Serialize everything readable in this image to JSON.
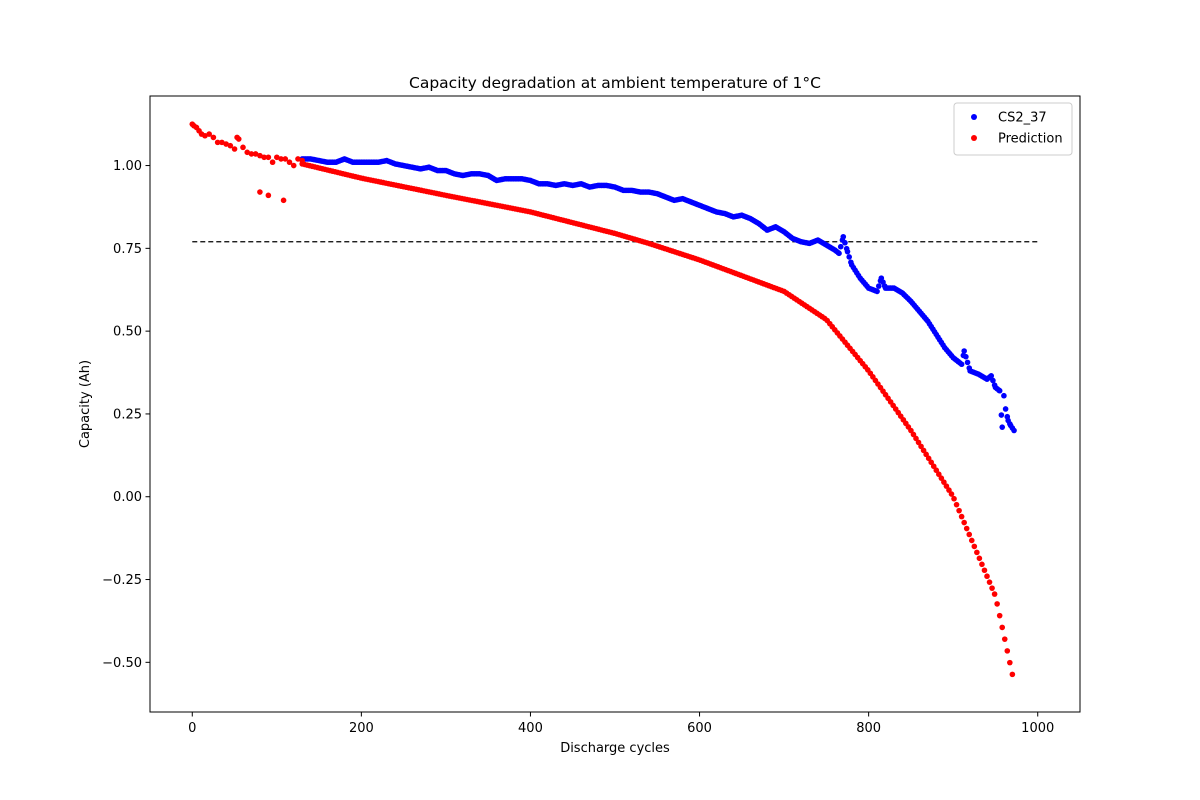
{
  "chart_data": {
    "type": "scatter",
    "title": "Capacity degradation at ambient temperature of 1°C",
    "xlabel": "Discharge cycles",
    "ylabel": "Capacity (Ah)",
    "xlim": [
      -50,
      1050
    ],
    "ylim": [
      -0.65,
      1.21
    ],
    "xticks": [
      0,
      200,
      400,
      600,
      800,
      1000
    ],
    "yticks": [
      -0.5,
      -0.25,
      0.0,
      0.25,
      0.5,
      0.75,
      1.0
    ],
    "xtick_labels": [
      "0",
      "200",
      "400",
      "600",
      "800",
      "1000"
    ],
    "ytick_labels": [
      "−0.50",
      "−0.25",
      "0.00",
      "0.25",
      "0.50",
      "0.75",
      "1.00"
    ],
    "grid": false,
    "legend_position": "upper-right",
    "reference_line": {
      "y": 0.77,
      "x": [
        0,
        1000
      ],
      "style": "dashed",
      "color": "#000000"
    },
    "series": [
      {
        "name": "CS2_37",
        "color": "#0000ff",
        "marker": "circle",
        "points": [
          [
            130,
            1.02
          ],
          [
            140,
            1.02
          ],
          [
            150,
            1.015
          ],
          [
            160,
            1.01
          ],
          [
            170,
            1.01
          ],
          [
            180,
            1.02
          ],
          [
            190,
            1.01
          ],
          [
            200,
            1.01
          ],
          [
            210,
            1.01
          ],
          [
            220,
            1.01
          ],
          [
            230,
            1.015
          ],
          [
            240,
            1.005
          ],
          [
            250,
            1.0
          ],
          [
            260,
            0.995
          ],
          [
            270,
            0.99
          ],
          [
            280,
            0.995
          ],
          [
            290,
            0.985
          ],
          [
            300,
            0.985
          ],
          [
            310,
            0.975
          ],
          [
            320,
            0.97
          ],
          [
            330,
            0.975
          ],
          [
            340,
            0.975
          ],
          [
            350,
            0.97
          ],
          [
            360,
            0.955
          ],
          [
            370,
            0.96
          ],
          [
            380,
            0.96
          ],
          [
            390,
            0.96
          ],
          [
            400,
            0.955
          ],
          [
            410,
            0.945
          ],
          [
            420,
            0.945
          ],
          [
            430,
            0.94
          ],
          [
            440,
            0.945
          ],
          [
            450,
            0.94
          ],
          [
            460,
            0.945
          ],
          [
            470,
            0.935
          ],
          [
            480,
            0.94
          ],
          [
            490,
            0.94
          ],
          [
            500,
            0.935
          ],
          [
            510,
            0.925
          ],
          [
            520,
            0.925
          ],
          [
            530,
            0.92
          ],
          [
            540,
            0.92
          ],
          [
            550,
            0.915
          ],
          [
            560,
            0.905
          ],
          [
            570,
            0.895
          ],
          [
            580,
            0.9
          ],
          [
            590,
            0.89
          ],
          [
            600,
            0.88
          ],
          [
            610,
            0.87
          ],
          [
            620,
            0.86
          ],
          [
            630,
            0.855
          ],
          [
            640,
            0.845
          ],
          [
            650,
            0.85
          ],
          [
            660,
            0.84
          ],
          [
            670,
            0.825
          ],
          [
            680,
            0.805
          ],
          [
            690,
            0.815
          ],
          [
            700,
            0.8
          ],
          [
            710,
            0.78
          ],
          [
            720,
            0.77
          ],
          [
            730,
            0.765
          ],
          [
            740,
            0.775
          ],
          [
            750,
            0.76
          ],
          [
            760,
            0.745
          ],
          [
            765,
            0.735
          ],
          [
            770,
            0.785
          ],
          [
            775,
            0.74
          ],
          [
            780,
            0.7
          ],
          [
            790,
            0.66
          ],
          [
            800,
            0.63
          ],
          [
            810,
            0.62
          ],
          [
            815,
            0.66
          ],
          [
            820,
            0.63
          ],
          [
            830,
            0.63
          ],
          [
            840,
            0.615
          ],
          [
            850,
            0.59
          ],
          [
            860,
            0.56
          ],
          [
            870,
            0.53
          ],
          [
            880,
            0.49
          ],
          [
            890,
            0.45
          ],
          [
            900,
            0.42
          ],
          [
            910,
            0.4
          ],
          [
            913,
            0.44
          ],
          [
            920,
            0.38
          ],
          [
            930,
            0.37
          ],
          [
            940,
            0.355
          ],
          [
            945,
            0.365
          ],
          [
            950,
            0.33
          ],
          [
            955,
            0.32
          ],
          [
            958,
            0.21
          ],
          [
            960,
            0.305
          ],
          [
            962,
            0.265
          ],
          [
            965,
            0.23
          ],
          [
            968,
            0.215
          ],
          [
            972,
            0.2
          ]
        ]
      },
      {
        "name": "Prediction",
        "color": "#ff0000",
        "marker": "circle",
        "points": [
          [
            0,
            1.125
          ],
          [
            2,
            1.12
          ],
          [
            5,
            1.115
          ],
          [
            8,
            1.105
          ],
          [
            11,
            1.095
          ],
          [
            15,
            1.09
          ],
          [
            20,
            1.095
          ],
          [
            25,
            1.085
          ],
          [
            30,
            1.07
          ],
          [
            35,
            1.07
          ],
          [
            40,
            1.065
          ],
          [
            45,
            1.06
          ],
          [
            50,
            1.05
          ],
          [
            53,
            1.085
          ],
          [
            55,
            1.08
          ],
          [
            60,
            1.055
          ],
          [
            65,
            1.04
          ],
          [
            70,
            1.035
          ],
          [
            75,
            1.035
          ],
          [
            80,
            1.03
          ],
          [
            85,
            1.025
          ],
          [
            90,
            1.025
          ],
          [
            95,
            1.01
          ],
          [
            100,
            1.025
          ],
          [
            105,
            1.02
          ],
          [
            110,
            1.02
          ],
          [
            115,
            1.01
          ],
          [
            120,
            1.0
          ],
          [
            125,
            1.02
          ],
          [
            130,
            1.015
          ],
          [
            80,
            0.92
          ],
          [
            90,
            0.91
          ],
          [
            108,
            0.895
          ]
        ],
        "curve": {
          "x_start": 130,
          "x_end": 972,
          "step": 3,
          "knots": [
            [
              130,
              1.005
            ],
            [
              200,
              0.962
            ],
            [
              300,
              0.91
            ],
            [
              400,
              0.86
            ],
            [
              500,
              0.795
            ],
            [
              540,
              0.765
            ],
            [
              600,
              0.715
            ],
            [
              700,
              0.62
            ],
            [
              750,
              0.535
            ],
            [
              800,
              0.38
            ],
            [
              850,
              0.2
            ],
            [
              900,
              0.0
            ],
            [
              950,
              -0.3
            ],
            [
              972,
              -0.56
            ]
          ]
        }
      }
    ]
  }
}
